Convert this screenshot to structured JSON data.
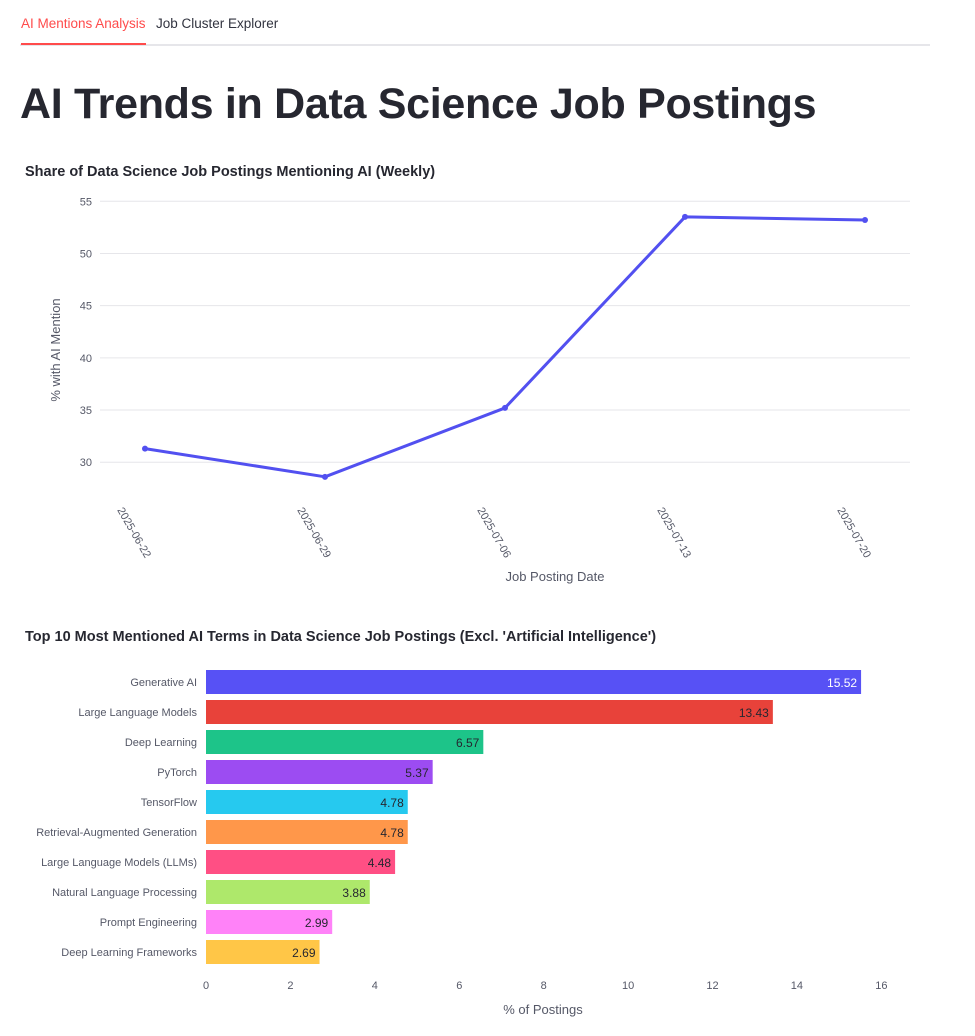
{
  "tabs": [
    {
      "label": "AI Mentions Analysis",
      "active": true
    },
    {
      "label": "Job Cluster Explorer",
      "active": false
    }
  ],
  "page_title": "AI Trends in Data Science Job Postings",
  "colors": {
    "accent": "#ff4b4b",
    "line": "#5250f0",
    "bars": [
      "#5751f5",
      "#e8423a",
      "#1dc489",
      "#9c4cf2",
      "#26c9ef",
      "#ff974a",
      "#ff4f84",
      "#aee86b",
      "#ff82f8",
      "#ffc647"
    ]
  },
  "chart_data": [
    {
      "type": "line",
      "title": "Share of Data Science Job Postings Mentioning AI (Weekly)",
      "xlabel": "Job Posting Date",
      "ylabel": "% with AI Mention",
      "x": [
        "2025-06-22",
        "2025-06-29",
        "2025-07-06",
        "2025-07-13",
        "2025-07-20"
      ],
      "values": [
        31.3,
        28.6,
        35.2,
        53.5,
        53.2
      ],
      "yticks": [
        30,
        35,
        40,
        45,
        50,
        55
      ],
      "ylim": [
        25.9,
        55.6
      ],
      "grid": true
    },
    {
      "type": "bar",
      "orientation": "horizontal",
      "title": "Top 10 Most Mentioned AI Terms in Data Science Job Postings (Excl. 'Artificial Intelligence')",
      "xlabel": "% of Postings",
      "ylabel": "",
      "categories": [
        "Generative AI",
        "Large Language Models",
        "Deep Learning",
        "PyTorch",
        "TensorFlow",
        "Retrieval-Augmented Generation",
        "Large Language Models (LLMs)",
        "Natural Language Processing",
        "Prompt Engineering",
        "Deep Learning Frameworks"
      ],
      "values": [
        15.52,
        13.43,
        6.57,
        5.37,
        4.78,
        4.78,
        4.48,
        3.88,
        2.99,
        2.69
      ],
      "labels": [
        "15.52",
        "13.43",
        "6.57",
        "5.37",
        "4.78",
        "4.78",
        "4.48",
        "3.88",
        "2.99",
        "2.69"
      ],
      "xticks": [
        0,
        2,
        4,
        6,
        8,
        10,
        12,
        14,
        16
      ],
      "xlim": [
        0,
        16.3
      ],
      "grid": false
    }
  ]
}
